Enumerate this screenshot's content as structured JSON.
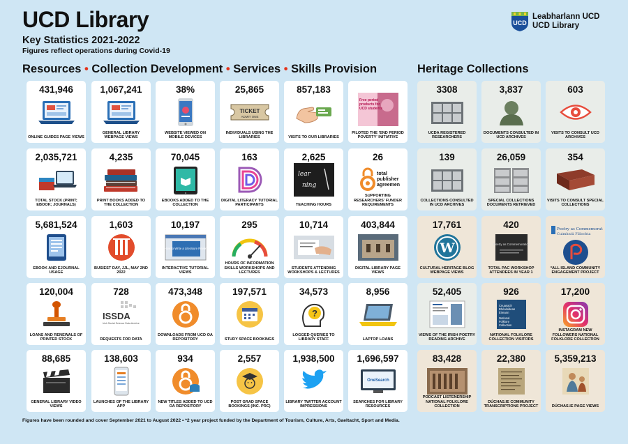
{
  "header": {
    "title": "UCD Library",
    "subtitle": "Key Statistics 2021-2022",
    "note": "Figures reflect operations during Covid-19",
    "logo_line1": "Leabharlann UCD",
    "logo_line2": "UCD Library",
    "logo_crest": "UCD"
  },
  "sections": {
    "resources": "Resources",
    "collection": "Collection Development",
    "services": "Services",
    "skills": "Skills Provision",
    "bullet": "•",
    "heritage": "Heritage Collections"
  },
  "cards": [
    {
      "value": "431,946",
      "label": "ONLINE GUIDES PAGE VIEWS",
      "icon": "laptop-guides-icon"
    },
    {
      "value": "1,067,241",
      "label": "GENERAL LIBRARY WEBPAGE VIEWS",
      "icon": "laptop-webpage-icon"
    },
    {
      "value": "38%",
      "label": "WEBSITE VIEWED ON MOBILE DEVICES",
      "icon": "mobile-phone-icon"
    },
    {
      "value": "25,865",
      "label": "INDIVIDUALS USING THE LIBRARIES",
      "icon": "ticket-icon",
      "icon_text": "TICKET",
      "icon_sub": "ADMIT ONE"
    },
    {
      "value": "857,183",
      "label": "VISITS TO OUR LIBRARIES",
      "icon": "hand-card-icon"
    },
    {
      "value": "",
      "label": "PILOTED THE 'END PERIOD POVERTY' INITIATIVE",
      "icon": "period-poster-icon",
      "icon_text": "Free period products for UCD students"
    },
    {
      "value": "2,035,721",
      "label": "TOTAL STOCK (PRINT; EBOOK; JOURNALS)",
      "icon": "book-laptop-icon"
    },
    {
      "value": "4,235",
      "label": "PRINT BOOKS ADDED TO THE COLLECTION",
      "icon": "book-stack-icon"
    },
    {
      "value": "70,045",
      "label": "EBOOKS ADDED TO THE COLLECTION",
      "icon": "ebook-tablet-icon"
    },
    {
      "value": "163",
      "label": "DIGITAL LITERACY TUTORIAL PARTICIPANTS",
      "icon": "digital-d-icon"
    },
    {
      "value": "2,625",
      "label": "TEACHING HOURS",
      "icon": "blackboard-icon",
      "icon_text": "learning"
    },
    {
      "value": "26",
      "label": "SUPPORTING RESEARCHERS' FUNDER REQUIREMENTS",
      "icon": "open-access-icon",
      "icon_text": "total publisher agreements"
    },
    {
      "value": "5,681,524",
      "label": "EBOOK AND EJOURNAL USAGE",
      "icon": "ereader-icon"
    },
    {
      "value": "1,603",
      "label": "BUSIEST DAY, JJL, MAY 2ND 2022",
      "icon": "library-building-icon"
    },
    {
      "value": "10,197",
      "label": "INTERACTIVE TUTORIAL VIEWS",
      "icon": "tutorial-screen-icon",
      "icon_text": "How to Write a Literature Review"
    },
    {
      "value": "295",
      "label": "HOURS OF INFORMATION SKILLS WORKSHOPS AND LECTURES",
      "icon": "speedometer-icon"
    },
    {
      "value": "10,714",
      "label": "STUDENTS ATTENDING WORKSHOPS & LECTURES",
      "icon": "writing-hand-icon"
    },
    {
      "value": "403,844",
      "label": "DIGITAL LIBRARY PAGE VIEWS",
      "icon": "digital-library-photo-icon"
    },
    {
      "value": "120,004",
      "label": "LOANS AND RENEWALS OF PRINTED STOCK",
      "icon": "stamp-icon"
    },
    {
      "value": "728",
      "label": "REQUESTS FOR DATA",
      "icon": "issda-logo-icon",
      "icon_text": "ISSDA",
      "icon_sub": "Irish Social Science Data Archive"
    },
    {
      "value": "473,348",
      "label": "DOWNLOADS FROM UCD OA REPOSITORY",
      "icon": "open-access-lock-icon"
    },
    {
      "value": "197,571",
      "label": "STUDY SPACE BOOKINGS",
      "icon": "calendar-icon"
    },
    {
      "value": "34,573",
      "label": "LOGGED QUERIES TO LIBRARY STAFF",
      "icon": "question-head-icon"
    },
    {
      "value": "8,956",
      "label": "LAPTOP LOANS",
      "icon": "laptop-icon"
    },
    {
      "value": "88,685",
      "label": "GENERAL LIBRARY VIDEO VIEWS",
      "icon": "clapperboard-icon"
    },
    {
      "value": "138,603",
      "label": "LAUNCHES OF THE LIBRARY APP",
      "icon": "library-app-icon"
    },
    {
      "value": "934",
      "label": "NEW TITLES ADDED TO UCD OA REPOSITORY",
      "icon": "oa-database-icon"
    },
    {
      "value": "2,557",
      "label": "POST GRAD SPACE BOOKINGS (INC. PRC)",
      "icon": "graduate-icon"
    },
    {
      "value": "1,938,500",
      "label": "LIBRARY TWITTER ACCOUNT IMPRESSIONS",
      "icon": "twitter-icon"
    },
    {
      "value": "1,696,597",
      "label": "SEARCHES FOR LIBRARY RESOURCES",
      "icon": "onesearch-icon",
      "icon_text": "OneSearch"
    }
  ],
  "heritage": [
    {
      "value": "3308",
      "label": "UCDA REGISTERED RESEARCHERS",
      "icon": "archive-boxes-icon"
    },
    {
      "value": "3,837",
      "label": "DOCUMENTS CONSULTED IN UCD ARCHIVES",
      "icon": "bust-statue-icon"
    },
    {
      "value": "603",
      "label": "VISITS TO CONSULT UCD ARCHIVES",
      "icon": "eye-icon"
    },
    {
      "value": "139",
      "label": "COLLECTIONS CONSULTED IN UCD ARCHIVES",
      "icon": "archive-shelves-icon"
    },
    {
      "value": "26,059",
      "label": "SPECIAL COLLECTIONS DOCUMENTS RETRIEVED",
      "icon": "filing-cabinets-icon"
    },
    {
      "value": "354",
      "label": "VISITS TO CONSULT SPECIAL COLLECTIONS",
      "icon": "old-book-icon"
    },
    {
      "value": "17,761",
      "label": "CULTURAL HERITAGE BLOG WEBPAGE VIEWS",
      "icon": "wordpress-icon"
    },
    {
      "value": "420",
      "label": "TOTAL PAC WORKSHOP ATTENDEES IN YEAR 1",
      "icon": "pac-poster-icon",
      "icon_text": "Poetry as Commemoration"
    },
    {
      "value": "",
      "label": "*ALL ISLAND COMMUNITY ENGAGEMENT PROJECT",
      "icon": "poetry-commemoration-icon",
      "icon_text": "Poetry as Commemoration",
      "icon_sub": "Cuimhniú Filíochta"
    },
    {
      "value": "52,405",
      "label": "VIEWS OF THE IRISH POETRY READING ARCHIVE",
      "icon": "poetry-archive-screen-icon"
    },
    {
      "value": "926",
      "label": "NATIONAL FOLKLORE COLLECTION VISITORS",
      "icon": "folklore-banner-icon",
      "icon_text": "Cnuasach Bhéaloideas Éireann",
      "icon_sub": "National Folklore Collection"
    },
    {
      "value": "17,200",
      "label": "INSTAGRAM NEW FOLLOWERS NATIONAL FOLKLORE COLLECTION",
      "icon": "instagram-icon"
    },
    {
      "value": "83,428",
      "label": "PODCAST LISTENERSHIP NATIONAL FOLKLORE COLLECTION",
      "icon": "podcast-photo-icon"
    },
    {
      "value": "22,380",
      "label": "DÚCHAS.IE COMMUNITY TRANSCRIPTIONS PROJECT",
      "icon": "manuscript-icon"
    },
    {
      "value": "5,359,213",
      "label": "DÚCHAS.IE PAGE VIEWS",
      "icon": "illustration-icon"
    }
  ],
  "footer": "Figures have been rounded and cover September 2021 to August 2022 • *2 year project funded by the Department of Tourism, Culture, Arts, Gaeltacht, Sport and Media."
}
